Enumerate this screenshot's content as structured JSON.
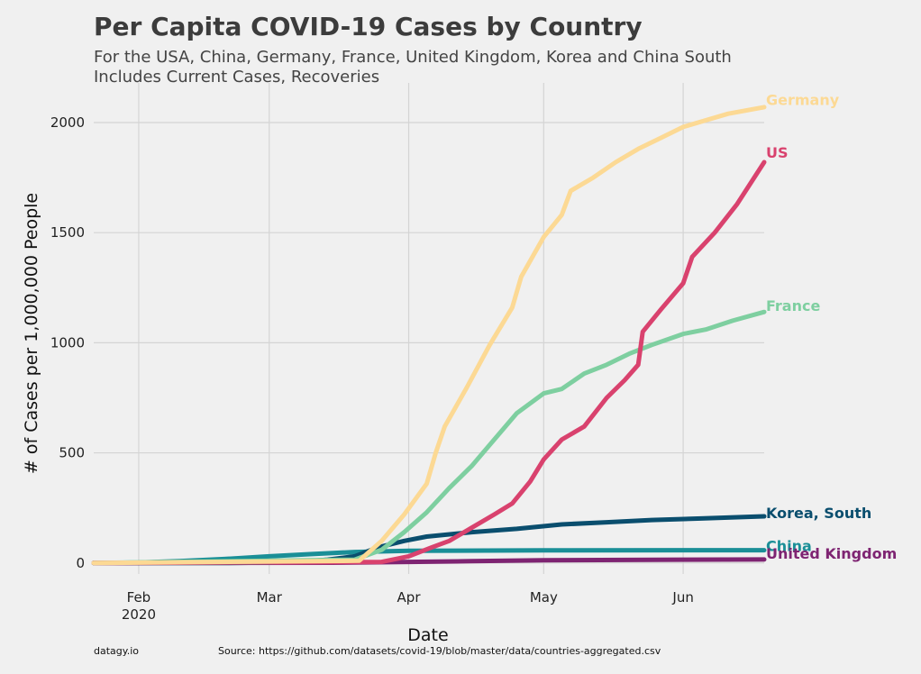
{
  "chart_data": {
    "type": "line",
    "title": "Per Capita COVID-19 Cases by Country",
    "subtitle_lines": [
      "For the USA, China, Germany, France, United Kingdom, Korea and China South",
      "Includes Current Cases, Recoveries"
    ],
    "xlabel": "Date",
    "ylabel": "# of Cases per 1,000,000 People",
    "x_axis": "date",
    "xlim": [
      "2020-01-22",
      "2020-06-19"
    ],
    "ylim": [
      -50,
      2180
    ],
    "x_ticks": [
      {
        "date": "2020-02-01",
        "label": "Feb",
        "sublabel": "2020"
      },
      {
        "date": "2020-03-01",
        "label": "Mar",
        "sublabel": ""
      },
      {
        "date": "2020-04-01",
        "label": "Apr",
        "sublabel": ""
      },
      {
        "date": "2020-05-01",
        "label": "May",
        "sublabel": ""
      },
      {
        "date": "2020-06-01",
        "label": "Jun",
        "sublabel": ""
      }
    ],
    "y_ticks": [
      0,
      500,
      1000,
      1500,
      2000
    ],
    "grid": true,
    "legend": "none",
    "series": [
      {
        "name": "China",
        "color": "#1a8f97",
        "points": [
          [
            "2020-01-22",
            0
          ],
          [
            "2020-02-01",
            2
          ],
          [
            "2020-02-10",
            8
          ],
          [
            "2020-02-20",
            18
          ],
          [
            "2020-03-01",
            30
          ],
          [
            "2020-03-10",
            40
          ],
          [
            "2020-03-20",
            50
          ],
          [
            "2020-04-01",
            55
          ],
          [
            "2020-05-01",
            57
          ],
          [
            "2020-06-19",
            58
          ]
        ]
      },
      {
        "name": "United Kingdom",
        "color": "#7e2472",
        "points": [
          [
            "2020-01-22",
            0
          ],
          [
            "2020-03-15",
            1
          ],
          [
            "2020-03-25",
            3
          ],
          [
            "2020-04-01",
            5
          ],
          [
            "2020-04-15",
            8
          ],
          [
            "2020-05-01",
            12
          ],
          [
            "2020-06-01",
            15
          ],
          [
            "2020-06-19",
            16
          ]
        ]
      },
      {
        "name": "Korea, South",
        "color": "#0a4e6e",
        "points": [
          [
            "2020-01-22",
            0
          ],
          [
            "2020-02-20",
            0
          ],
          [
            "2020-03-01",
            2
          ],
          [
            "2020-03-08",
            6
          ],
          [
            "2020-03-14",
            15
          ],
          [
            "2020-03-20",
            30
          ],
          [
            "2020-03-25",
            70
          ],
          [
            "2020-03-31",
            100
          ],
          [
            "2020-04-05",
            120
          ],
          [
            "2020-04-15",
            140
          ],
          [
            "2020-04-25",
            155
          ],
          [
            "2020-05-05",
            175
          ],
          [
            "2020-05-15",
            185
          ],
          [
            "2020-05-25",
            195
          ],
          [
            "2020-06-05",
            202
          ],
          [
            "2020-06-19",
            212
          ]
        ]
      },
      {
        "name": "France",
        "color": "#7ecfa0",
        "points": [
          [
            "2020-01-22",
            0
          ],
          [
            "2020-03-20",
            15
          ],
          [
            "2020-03-26",
            60
          ],
          [
            "2020-03-31",
            140
          ],
          [
            "2020-04-05",
            230
          ],
          [
            "2020-04-10",
            340
          ],
          [
            "2020-04-15",
            440
          ],
          [
            "2020-04-20",
            560
          ],
          [
            "2020-04-25",
            680
          ],
          [
            "2020-05-01",
            770
          ],
          [
            "2020-05-05",
            790
          ],
          [
            "2020-05-10",
            860
          ],
          [
            "2020-05-15",
            900
          ],
          [
            "2020-05-20",
            950
          ],
          [
            "2020-05-25",
            990
          ],
          [
            "2020-06-01",
            1040
          ],
          [
            "2020-06-06",
            1060
          ],
          [
            "2020-06-12",
            1100
          ],
          [
            "2020-06-19",
            1140
          ]
        ]
      },
      {
        "name": "US",
        "color": "#d9426e",
        "points": [
          [
            "2020-01-22",
            0
          ],
          [
            "2020-03-26",
            5
          ],
          [
            "2020-04-01",
            30
          ],
          [
            "2020-04-06",
            70
          ],
          [
            "2020-04-10",
            100
          ],
          [
            "2020-04-15",
            160
          ],
          [
            "2020-04-20",
            220
          ],
          [
            "2020-04-24",
            270
          ],
          [
            "2020-04-28",
            370
          ],
          [
            "2020-05-01",
            470
          ],
          [
            "2020-05-05",
            560
          ],
          [
            "2020-05-10",
            620
          ],
          [
            "2020-05-15",
            750
          ],
          [
            "2020-05-19",
            830
          ],
          [
            "2020-05-22",
            900
          ],
          [
            "2020-05-23",
            1050
          ],
          [
            "2020-05-27",
            1150
          ],
          [
            "2020-06-01",
            1270
          ],
          [
            "2020-06-03",
            1390
          ],
          [
            "2020-06-08",
            1500
          ],
          [
            "2020-06-13",
            1630
          ],
          [
            "2020-06-19",
            1820
          ]
        ]
      },
      {
        "name": "Germany",
        "color": "#fcd994",
        "points": [
          [
            "2020-01-22",
            0
          ],
          [
            "2020-03-21",
            10
          ],
          [
            "2020-03-26",
            100
          ],
          [
            "2020-03-31",
            220
          ],
          [
            "2020-04-05",
            360
          ],
          [
            "2020-04-07",
            500
          ],
          [
            "2020-04-09",
            620
          ],
          [
            "2020-04-14",
            800
          ],
          [
            "2020-04-19",
            990
          ],
          [
            "2020-04-24",
            1160
          ],
          [
            "2020-04-26",
            1300
          ],
          [
            "2020-05-01",
            1480
          ],
          [
            "2020-05-05",
            1580
          ],
          [
            "2020-05-07",
            1690
          ],
          [
            "2020-05-12",
            1750
          ],
          [
            "2020-05-17",
            1820
          ],
          [
            "2020-05-22",
            1880
          ],
          [
            "2020-05-27",
            1930
          ],
          [
            "2020-06-01",
            1980
          ],
          [
            "2020-06-06",
            2010
          ],
          [
            "2020-06-11",
            2040
          ],
          [
            "2020-06-19",
            2070
          ]
        ]
      }
    ],
    "series_labels": [
      {
        "text": "Germany",
        "color": "#fcd994",
        "y": 2100
      },
      {
        "text": "US",
        "color": "#d9426e",
        "y": 1860
      },
      {
        "text": "France",
        "color": "#7ecfa0",
        "y": 1165
      },
      {
        "text": "Korea, South",
        "color": "#0a4e6e",
        "y": 225
      },
      {
        "text": "China",
        "color": "#1a8f97",
        "y": 75
      },
      {
        "text": "United Kingdom",
        "color": "#7e2472",
        "y": 40
      }
    ]
  },
  "footer": {
    "left": "datagy.io",
    "source": "Source: https://github.com/datasets/covid-19/blob/master/data/countries-aggregated.csv"
  }
}
